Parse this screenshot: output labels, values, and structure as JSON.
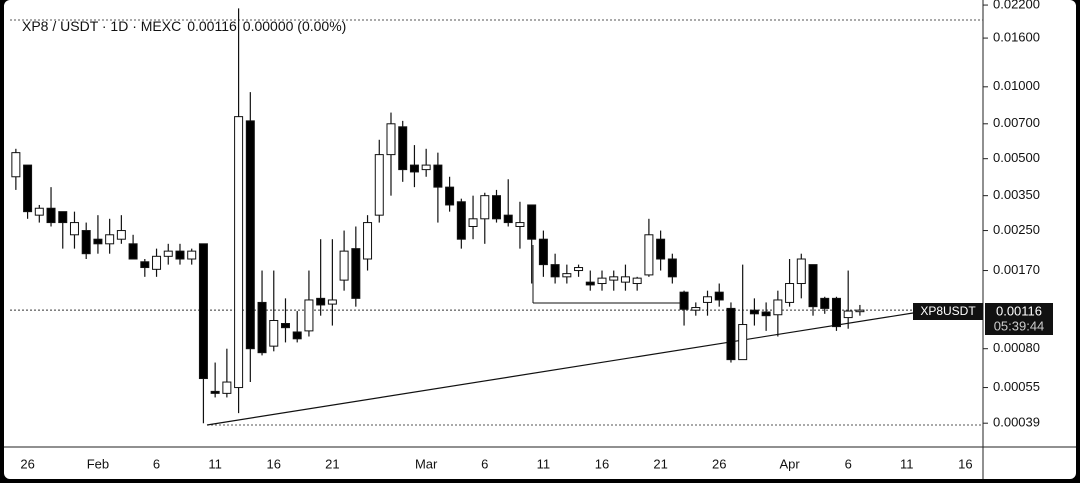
{
  "chart_data": {
    "type": "candlestick",
    "title": "XP8 / USDT · 1D · MEXC",
    "last_label": "0.00116",
    "change_label": "0.00000 (0.00%)",
    "price_tag": {
      "symbol": "XP8USDT",
      "value": 0.00116,
      "label": "0.00116",
      "countdown": "05:39:44"
    },
    "log_scale": true,
    "up_color": "#ffffff",
    "down_color": "#000000",
    "ylim": [
      0.00031,
      0.0231
    ],
    "yticks": [
      {
        "value": 0.022,
        "label": "0.02200"
      },
      {
        "value": 0.016,
        "label": "0.01600"
      },
      {
        "value": 0.01,
        "label": "0.01000"
      },
      {
        "value": 0.007,
        "label": "0.00700"
      },
      {
        "value": 0.005,
        "label": "0.00500"
      },
      {
        "value": 0.0035,
        "label": "0.00350"
      },
      {
        "value": 0.0025,
        "label": "0.00250"
      },
      {
        "value": 0.0017,
        "label": "0.00170"
      },
      {
        "value": 0.0008,
        "label": "0.00080"
      },
      {
        "value": 0.00055,
        "label": "0.00055"
      },
      {
        "value": 0.00039,
        "label": "0.00039"
      }
    ],
    "categories": [
      null,
      "26",
      null,
      null,
      null,
      null,
      null,
      "Feb",
      null,
      null,
      null,
      null,
      "6",
      null,
      null,
      null,
      null,
      "11",
      null,
      null,
      null,
      null,
      "16",
      null,
      null,
      null,
      null,
      "21",
      null,
      null,
      null,
      null,
      null,
      null,
      null,
      "Mar",
      null,
      null,
      null,
      null,
      "6",
      null,
      null,
      null,
      null,
      "11",
      null,
      null,
      null,
      null,
      "16",
      null,
      null,
      null,
      null,
      "21",
      null,
      null,
      null,
      null,
      "26",
      null,
      null,
      null,
      null,
      null,
      "Apr",
      null,
      null,
      null,
      null,
      "6",
      null,
      null,
      null,
      null,
      "11",
      null,
      null,
      null,
      null,
      "16",
      null
    ],
    "open": [
      0.0042,
      0.0047,
      0.0029,
      0.0031,
      0.003,
      0.0024,
      0.0025,
      0.0023,
      0.0022,
      0.0023,
      0.0022,
      0.00185,
      0.00172,
      0.00195,
      0.00205,
      0.0019,
      0.0022,
      0.00053,
      0.00052,
      0.00055,
      0.0072,
      0.00125,
      0.00082,
      0.00102,
      0.00094,
      0.00095,
      0.0013,
      0.00123,
      0.00155,
      0.0021,
      0.0019,
      0.0029,
      0.0052,
      0.0068,
      0.0047,
      0.0045,
      0.0047,
      0.0038,
      0.0033,
      0.0026,
      0.0028,
      0.0035,
      0.0029,
      0.0026,
      0.0032,
      0.0023,
      0.0018,
      0.0016,
      0.0017,
      0.00152,
      0.0015,
      0.00155,
      0.00152,
      0.0015,
      0.00163,
      0.0023,
      0.0019,
      0.00138,
      0.00116,
      0.00125,
      0.00138,
      0.00118,
      0.00072,
      0.00116,
      0.00114,
      0.00111,
      0.00125,
      0.0015,
      0.0018,
      0.0013,
      0.0013,
      0.00108,
      0.00115,
      null,
      null,
      null,
      null,
      null,
      null,
      null,
      null,
      null,
      null
    ],
    "high": [
      0.0055,
      0.0047,
      0.0032,
      0.0038,
      0.003,
      0.003,
      0.0027,
      0.0029,
      0.0028,
      0.0029,
      0.0024,
      0.0019,
      0.0021,
      0.0022,
      0.0022,
      0.0021,
      0.0022,
      0.0007,
      0.0008,
      0.0213,
      0.0095,
      0.0017,
      0.0017,
      0.0013,
      0.00115,
      0.0017,
      0.0023,
      0.0023,
      0.0025,
      0.0026,
      0.0029,
      0.006,
      0.0078,
      0.0072,
      0.0057,
      0.0055,
      0.0053,
      0.0042,
      0.0034,
      0.0035,
      0.0036,
      0.0037,
      0.0041,
      0.0033,
      0.0032,
      0.0025,
      0.002,
      0.0018,
      0.0018,
      0.0017,
      0.0017,
      0.0017,
      0.0018,
      0.0016,
      0.0028,
      0.0025,
      0.002,
      0.0014,
      0.00125,
      0.0014,
      0.0015,
      0.00125,
      0.0018,
      0.0013,
      0.00125,
      0.0014,
      0.0019,
      0.002,
      0.0018,
      0.00132,
      0.00132,
      0.0017,
      0.00122,
      null,
      null,
      null,
      null,
      null,
      null,
      null,
      null,
      null,
      null
    ],
    "low": [
      0.0037,
      0.0028,
      0.0027,
      0.0026,
      0.0021,
      0.0021,
      0.0019,
      0.002,
      0.002,
      0.0022,
      0.0019,
      0.0016,
      0.0016,
      0.0018,
      0.0018,
      0.0018,
      0.00039,
      0.0005,
      0.0005,
      0.00043,
      0.00058,
      0.00075,
      0.00078,
      0.00085,
      0.00085,
      0.0009,
      0.0011,
      0.001,
      0.0014,
      0.0012,
      0.0017,
      0.0027,
      0.0035,
      0.004,
      0.0038,
      0.0042,
      0.0027,
      0.003,
      0.0021,
      0.0023,
      0.0022,
      0.0027,
      0.0026,
      0.0021,
      0.0015,
      0.0016,
      0.0015,
      0.0015,
      0.0016,
      0.0014,
      0.0014,
      0.0014,
      0.0014,
      0.0014,
      0.0016,
      0.0017,
      0.0015,
      0.001,
      0.0011,
      0.0011,
      0.0012,
      0.0007,
      0.00072,
      0.001,
      0.00095,
      0.0009,
      0.0012,
      0.0013,
      0.0011,
      0.00112,
      0.00095,
      0.00097,
      0.0011,
      null,
      null,
      null,
      null,
      null,
      null,
      null,
      null,
      null,
      null
    ],
    "close": [
      0.0053,
      0.003,
      0.0031,
      0.0027,
      0.0027,
      0.0027,
      0.002,
      0.0022,
      0.0024,
      0.0025,
      0.0019,
      0.00175,
      0.00195,
      0.00205,
      0.0019,
      0.00205,
      0.0006,
      0.00052,
      0.00058,
      0.0075,
      0.0008,
      0.00077,
      0.00105,
      0.00098,
      0.00088,
      0.00128,
      0.00122,
      0.00128,
      0.00205,
      0.0013,
      0.0027,
      0.0052,
      0.007,
      0.0045,
      0.0044,
      0.0047,
      0.0038,
      0.0032,
      0.0023,
      0.0028,
      0.0035,
      0.0028,
      0.0027,
      0.0027,
      0.0023,
      0.0018,
      0.0016,
      0.00165,
      0.00175,
      0.00148,
      0.00158,
      0.0016,
      0.0016,
      0.00158,
      0.0024,
      0.0019,
      0.0016,
      0.00117,
      0.00119,
      0.00132,
      0.00128,
      0.00072,
      0.00101,
      0.00112,
      0.0011,
      0.00128,
      0.0015,
      0.0019,
      0.0012,
      0.00118,
      0.00099,
      0.00115,
      0.00116,
      null,
      null,
      null,
      null,
      null,
      null,
      null,
      null,
      null,
      null
    ]
  }
}
